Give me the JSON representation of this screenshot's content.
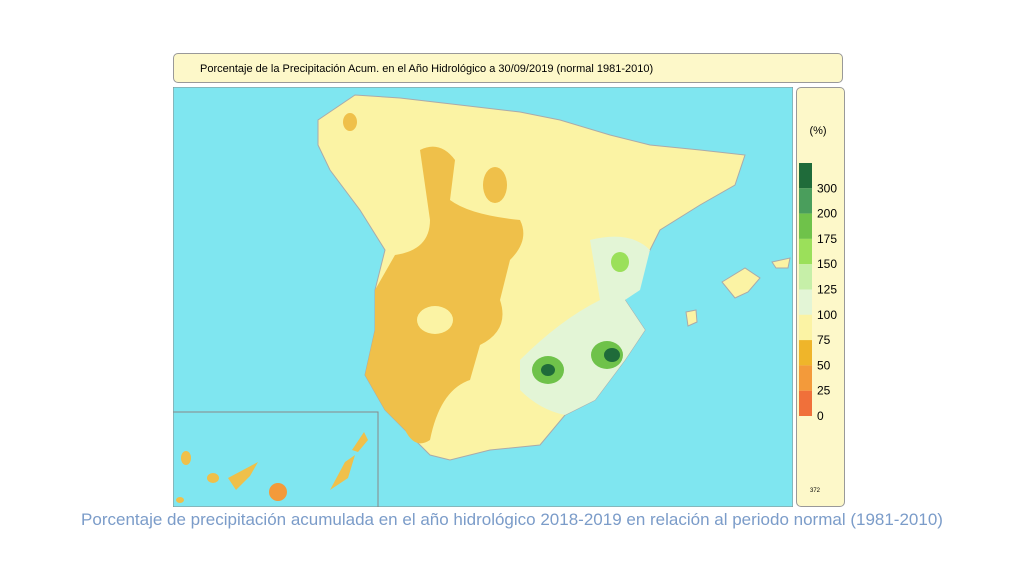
{
  "map": {
    "title": "Porcentaje de la Precipitación Acum. en el Año Hidrológico a 30/09/2019  (normal 1981-2010)",
    "legend": {
      "unit": "(%)",
      "ticks": [
        300,
        200,
        175,
        150,
        125,
        100,
        75,
        50,
        25,
        0
      ],
      "colors": [
        "#1f6b3a",
        "#4a9e5c",
        "#6fc24a",
        "#9be05a",
        "#c6efa8",
        "#e3f5d6",
        "#fbf3a4",
        "#efb52a",
        "#f39a3a",
        "#f0703a"
      ]
    },
    "footer_code": "372"
  },
  "caption": "Porcentaje de precipitación acumulada en el año hidrológico 2018-2019 en relación al periodo normal (1981-2010)"
}
